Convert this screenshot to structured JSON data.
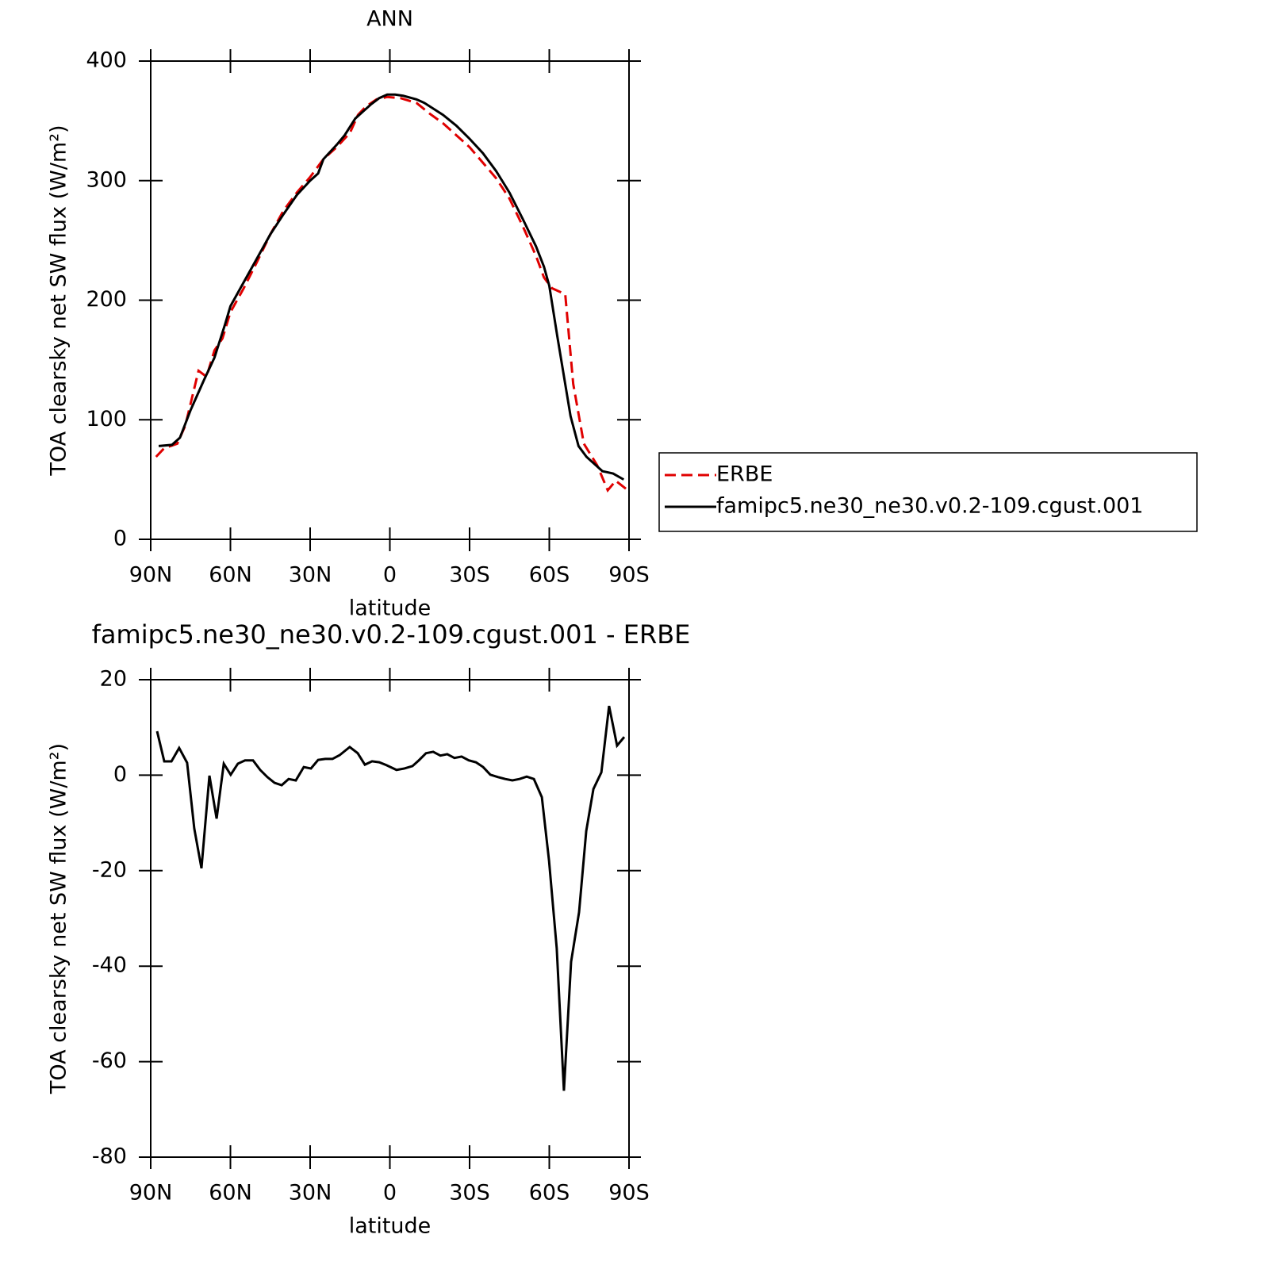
{
  "chart_data": [
    {
      "type": "line",
      "title": "ANN",
      "xlabel": "latitude",
      "ylabel": "TOA clearsky net SW flux (W/m²)",
      "xlim": [
        90,
        -90
      ],
      "xticks": [
        {
          "value": 90,
          "label": "90N"
        },
        {
          "value": 60,
          "label": "60N"
        },
        {
          "value": 30,
          "label": "30N"
        },
        0,
        {
          "value": -30,
          "label": "30S"
        },
        {
          "value": -60,
          "label": "60S"
        },
        {
          "value": -90,
          "label": "90S"
        }
      ],
      "ylim": [
        0,
        400
      ],
      "yticks": [
        0,
        100,
        200,
        300,
        400
      ],
      "legend": "right",
      "series": [
        {
          "name": "ERBE",
          "color": "#e00000",
          "linestyle": "dashed",
          "x": [
            88,
            85,
            80,
            77,
            72,
            69,
            66,
            63,
            60,
            55,
            50,
            45,
            40,
            35,
            30,
            25,
            20,
            15,
            12,
            9,
            5,
            1,
            -4,
            -10,
            -15,
            -20,
            -25,
            -30,
            -35,
            -40,
            -45,
            -50,
            -55,
            -58,
            -61,
            -66,
            -69,
            -73,
            -78,
            -82,
            -85,
            -89
          ],
          "values": [
            69,
            76,
            80,
            95,
            141,
            136,
            158,
            168,
            190,
            210,
            232,
            255,
            275,
            290,
            303,
            318,
            328,
            340,
            355,
            362,
            368,
            370,
            369,
            365,
            356,
            348,
            338,
            328,
            315,
            302,
            285,
            262,
            237,
            219,
            210,
            205,
            130,
            80,
            62,
            41,
            49,
            42
          ]
        },
        {
          "name": "famipc5.ne30_ne30.v0.2-109.cgust.001",
          "color": "#000000",
          "linestyle": "solid",
          "x": [
            87,
            82,
            79,
            75,
            70,
            66,
            62,
            60,
            55,
            50,
            45,
            40,
            35,
            30,
            27,
            25,
            20,
            17,
            13,
            10,
            7,
            4,
            1,
            -2,
            -5,
            -10,
            -13,
            -20,
            -25,
            -30,
            -35,
            -40,
            -45,
            -50,
            -55,
            -58,
            -60,
            -63,
            -68,
            -71,
            -74,
            -80,
            -84,
            -88
          ],
          "values": [
            78,
            79,
            85,
            108,
            133,
            152,
            180,
            195,
            215,
            235,
            255,
            272,
            288,
            300,
            306,
            318,
            330,
            338,
            352,
            358,
            364,
            369,
            372,
            372,
            371,
            368,
            365,
            355,
            346,
            335,
            323,
            308,
            290,
            268,
            245,
            228,
            212,
            170,
            103,
            78,
            69,
            57,
            55,
            50
          ]
        }
      ]
    },
    {
      "type": "line",
      "title": "famipc5.ne30_ne30.v0.2-109.cgust.001 - ERBE",
      "xlabel": "latitude",
      "ylabel": "TOA clearsky net SW flux (W/m²)",
      "xlim": [
        90,
        -90
      ],
      "xticks": [
        {
          "value": 90,
          "label": "90N"
        },
        {
          "value": 60,
          "label": "60N"
        },
        {
          "value": 30,
          "label": "30N"
        },
        0,
        {
          "value": -30,
          "label": "30S"
        },
        {
          "value": -60,
          "label": "60S"
        },
        {
          "value": -90,
          "label": "90S"
        }
      ],
      "ylim": [
        -80,
        20
      ],
      "yticks": [
        -80,
        -60,
        -40,
        -20,
        0,
        20
      ],
      "series": [
        {
          "color": "#000000",
          "linestyle": "solid",
          "x": [
            87.6,
            84.9,
            82.2,
            79.3,
            76.3,
            73.6,
            70.9,
            67.9,
            65.2,
            62.5,
            59.9,
            57.2,
            54.5,
            51.5,
            48.8,
            46.1,
            43.4,
            40.7,
            38.1,
            35.4,
            32.4,
            29.7,
            27.0,
            24.3,
            21.6,
            18.9,
            15.1,
            12.1,
            9.4,
            6.7,
            4.0,
            1.3,
            -2.5,
            -5.5,
            -8.5,
            -10.9,
            -13.6,
            -16.3,
            -19.0,
            -21.6,
            -24.3,
            -27.0,
            -29.7,
            -32.4,
            -35.1,
            -37.8,
            -40.7,
            -43.4,
            -46.1,
            -48.8,
            -51.5,
            -54.2,
            -57.2,
            -59.9,
            -62.8,
            -65.5,
            -68.2,
            -71.2,
            -73.9,
            -76.6,
            -79.6,
            -82.5,
            -85.5,
            -88.2
          ],
          "values": [
            9.2,
            2.9,
            2.9,
            5.7,
            2.6,
            -11.2,
            -19.5,
            -0.1,
            -9.1,
            2.4,
            0.1,
            2.4,
            3.1,
            3.1,
            1.1,
            -0.4,
            -1.6,
            -2.1,
            -0.8,
            -1.1,
            1.7,
            1.4,
            3.2,
            3.4,
            3.4,
            4.2,
            5.9,
            4.6,
            2.2,
            2.9,
            2.7,
            2.1,
            1.1,
            1.4,
            1.9,
            3.1,
            4.6,
            4.9,
            4.1,
            4.4,
            3.6,
            3.9,
            3.1,
            2.7,
            1.7,
            0.1,
            -0.4,
            -0.8,
            -1.1,
            -0.8,
            -0.3,
            -0.8,
            -4.6,
            -17.9,
            -36.3,
            -66.1,
            -39.1,
            -28.7,
            -11.7,
            -2.9,
            0.6,
            14.5,
            6.2,
            8.0
          ]
        }
      ]
    }
  ]
}
